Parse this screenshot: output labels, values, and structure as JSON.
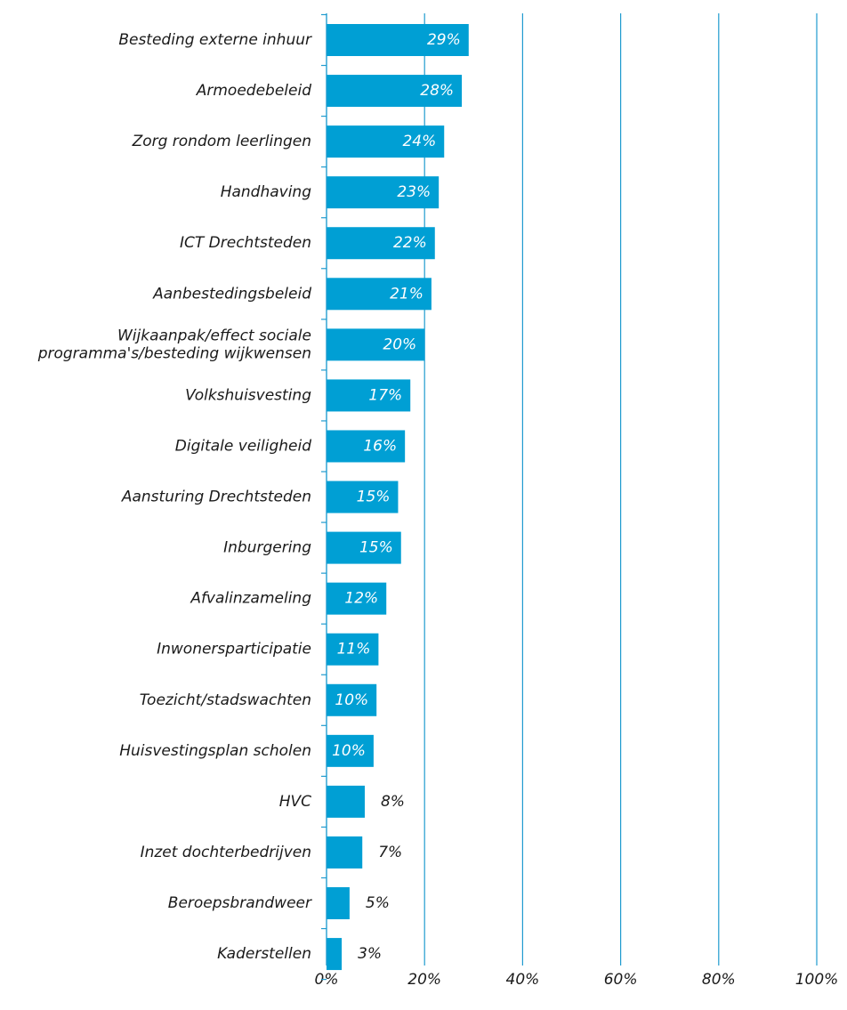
{
  "chart_data": {
    "type": "barh",
    "categories": [
      "Besteding externe inhuur",
      "Armoedebeleid",
      "Zorg rondom leerlingen",
      "Handhaving",
      "ICT Drechtsteden",
      "Aanbestedingsbeleid",
      [
        "Wijkaanpak/effect sociale",
        "programma's/besteding wijkwensen"
      ],
      "Volkshuisvesting",
      "Digitale veiligheid",
      "Aansturing Drechtsteden",
      "Inburgering",
      "Afvalinzameling",
      "Inwonersparticipatie",
      "Toezicht/stadswachten",
      "Huisvestingsplan scholen",
      "HVC",
      "Inzet dochterbedrijven",
      "Beroepsbrandweer",
      "Kaderstellen"
    ],
    "values": [
      29.0,
      27.6,
      24.0,
      22.9,
      22.1,
      21.4,
      20.0,
      17.1,
      16.0,
      14.6,
      15.2,
      12.2,
      10.6,
      10.2,
      9.6,
      7.8,
      7.3,
      4.7,
      3.1
    ],
    "value_labels": [
      "29%",
      "28%",
      "24%",
      "23%",
      "22%",
      "21%",
      "20%",
      "17%",
      "16%",
      "15%",
      "15%",
      "12%",
      "11%",
      "10%",
      "10%",
      "8%",
      "7%",
      "5%",
      "3%"
    ],
    "color": "#009fd4",
    "xlim": [
      0,
      100
    ],
    "xticks": [
      {
        "value": 0,
        "label": "0%"
      },
      {
        "value": 20,
        "label": "20%"
      },
      {
        "value": 40,
        "label": "40%"
      },
      {
        "value": 60,
        "label": "60%"
      },
      {
        "value": 80,
        "label": "80%"
      },
      {
        "value": 100,
        "label": "100%"
      }
    ],
    "grid": true
  }
}
